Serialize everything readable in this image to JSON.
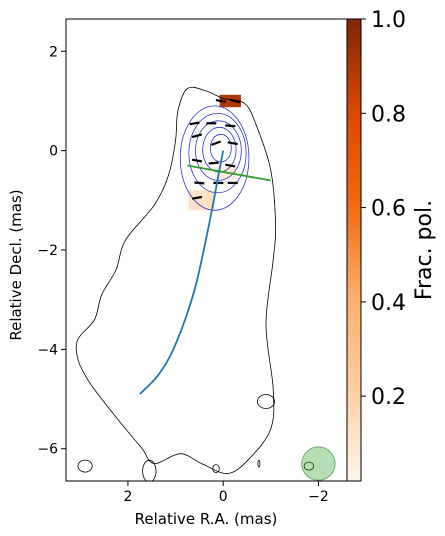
{
  "chart_data": {
    "type": "contour",
    "title": "",
    "xlabel": "Relative R.A. (mas)",
    "ylabel": "Relative Decl. (mas)",
    "xlim": [
      3.3,
      -2.6
    ],
    "ylim": [
      -6.65,
      2.65
    ],
    "x_ticks": [
      2,
      0,
      -2
    ],
    "y_ticks": [
      2,
      0,
      -2,
      -4,
      -6
    ],
    "colorbar": {
      "label": "Frac. pol.",
      "range": [
        0.02,
        1.0
      ],
      "ticks": [
        0.2,
        0.4,
        0.6,
        0.8,
        1.0
      ],
      "colormap": "Oranges"
    },
    "total_intensity_contour": [
      [
        0.75,
        1.25
      ],
      [
        0.35,
        1.2
      ],
      [
        0.0,
        1.05
      ],
      [
        -0.45,
        0.95
      ],
      [
        -0.7,
        0.5
      ],
      [
        -1.0,
        -0.4
      ],
      [
        -1.1,
        -1.5
      ],
      [
        -1.05,
        -2.2
      ],
      [
        -0.9,
        -3.5
      ],
      [
        -1.05,
        -4.8
      ],
      [
        -1.0,
        -5.6
      ],
      [
        -0.55,
        -6.2
      ],
      [
        -0.1,
        -6.5
      ],
      [
        0.45,
        -6.3
      ],
      [
        0.9,
        -6.1
      ],
      [
        1.45,
        -6.3
      ],
      [
        1.7,
        -6.0
      ],
      [
        2.05,
        -5.6
      ],
      [
        2.55,
        -5.0
      ],
      [
        2.85,
        -4.6
      ],
      [
        3.05,
        -4.2
      ],
      [
        3.05,
        -3.8
      ],
      [
        2.7,
        -3.4
      ],
      [
        2.55,
        -2.9
      ],
      [
        2.25,
        -2.4
      ],
      [
        2.05,
        -1.8
      ],
      [
        1.45,
        -1.1
      ],
      [
        1.15,
        -0.5
      ],
      [
        1.0,
        0.2
      ],
      [
        0.95,
        0.8
      ]
    ],
    "isolated_contours": [
      {
        "x": -0.9,
        "y": -5.05,
        "rx": 0.18,
        "ry": 0.14
      },
      {
        "x": -1.8,
        "y": -6.35,
        "rx": 0.1,
        "ry": 0.08
      },
      {
        "x": 2.9,
        "y": -6.35,
        "rx": 0.15,
        "ry": 0.12
      },
      {
        "x": 1.55,
        "y": -6.45,
        "rx": 0.14,
        "ry": 0.22
      },
      {
        "x": 0.15,
        "y": -6.4,
        "rx": 0.07,
        "ry": 0.08
      },
      {
        "x": -0.75,
        "y": -6.3,
        "rx": 0.02,
        "ry": 0.07
      }
    ],
    "polarized_contours": [
      {
        "x": 0.05,
        "y": 0.05,
        "rx": 0.22,
        "ry": 0.28
      },
      {
        "x": 0.08,
        "y": 0.02,
        "rx": 0.35,
        "ry": 0.45
      },
      {
        "x": 0.1,
        "y": 0.0,
        "rx": 0.48,
        "ry": 0.6
      },
      {
        "x": 0.12,
        "y": -0.05,
        "rx": 0.6,
        "ry": 0.8
      },
      {
        "x": 0.18,
        "y": -0.15,
        "rx": 0.72,
        "ry": 1.05
      }
    ],
    "frac_pol_patches": [
      {
        "x": -0.15,
        "y": 1.0,
        "w": 0.45,
        "h": 0.25,
        "value": 0.9
      },
      {
        "x": 0.45,
        "y": -1.0,
        "w": 0.55,
        "h": 0.4,
        "value": 0.12
      },
      {
        "x": -0.05,
        "y": -0.45,
        "w": 0.45,
        "h": 0.25,
        "value": 0.08
      }
    ],
    "evpa_ticks": [
      {
        "x": 0.05,
        "y": 1.0,
        "angle": 10
      },
      {
        "x": -0.25,
        "y": 1.0,
        "angle": 15
      },
      {
        "x": 0.6,
        "y": 0.55,
        "angle": -10
      },
      {
        "x": 0.25,
        "y": 0.55,
        "angle": 0
      },
      {
        "x": -0.15,
        "y": 0.5,
        "angle": 5
      },
      {
        "x": 0.55,
        "y": 0.3,
        "angle": -15
      },
      {
        "x": 0.15,
        "y": 0.15,
        "angle": -20
      },
      {
        "x": -0.2,
        "y": 0.15,
        "angle": 10
      },
      {
        "x": 0.55,
        "y": -0.2,
        "angle": 10
      },
      {
        "x": 0.2,
        "y": -0.25,
        "angle": -5
      },
      {
        "x": -0.15,
        "y": -0.3,
        "angle": 10
      },
      {
        "x": 0.5,
        "y": -0.65,
        "angle": 5
      },
      {
        "x": 0.1,
        "y": -0.65,
        "angle": 0
      },
      {
        "x": -0.2,
        "y": -0.65,
        "angle": 0
      },
      {
        "x": 0.55,
        "y": -0.95,
        "angle": -10
      }
    ],
    "jet_path": [
      [
        0.0,
        0.0
      ],
      [
        0.1,
        -0.5
      ],
      [
        0.3,
        -1.5
      ],
      [
        0.6,
        -2.8
      ],
      [
        1.0,
        -3.9
      ],
      [
        1.35,
        -4.5
      ],
      [
        1.75,
        -4.9
      ]
    ],
    "cut_line": [
      [
        0.75,
        -0.3
      ],
      [
        -1.0,
        -0.6
      ]
    ],
    "beam": {
      "x": -2.0,
      "y": -6.3,
      "r": 0.35
    }
  }
}
